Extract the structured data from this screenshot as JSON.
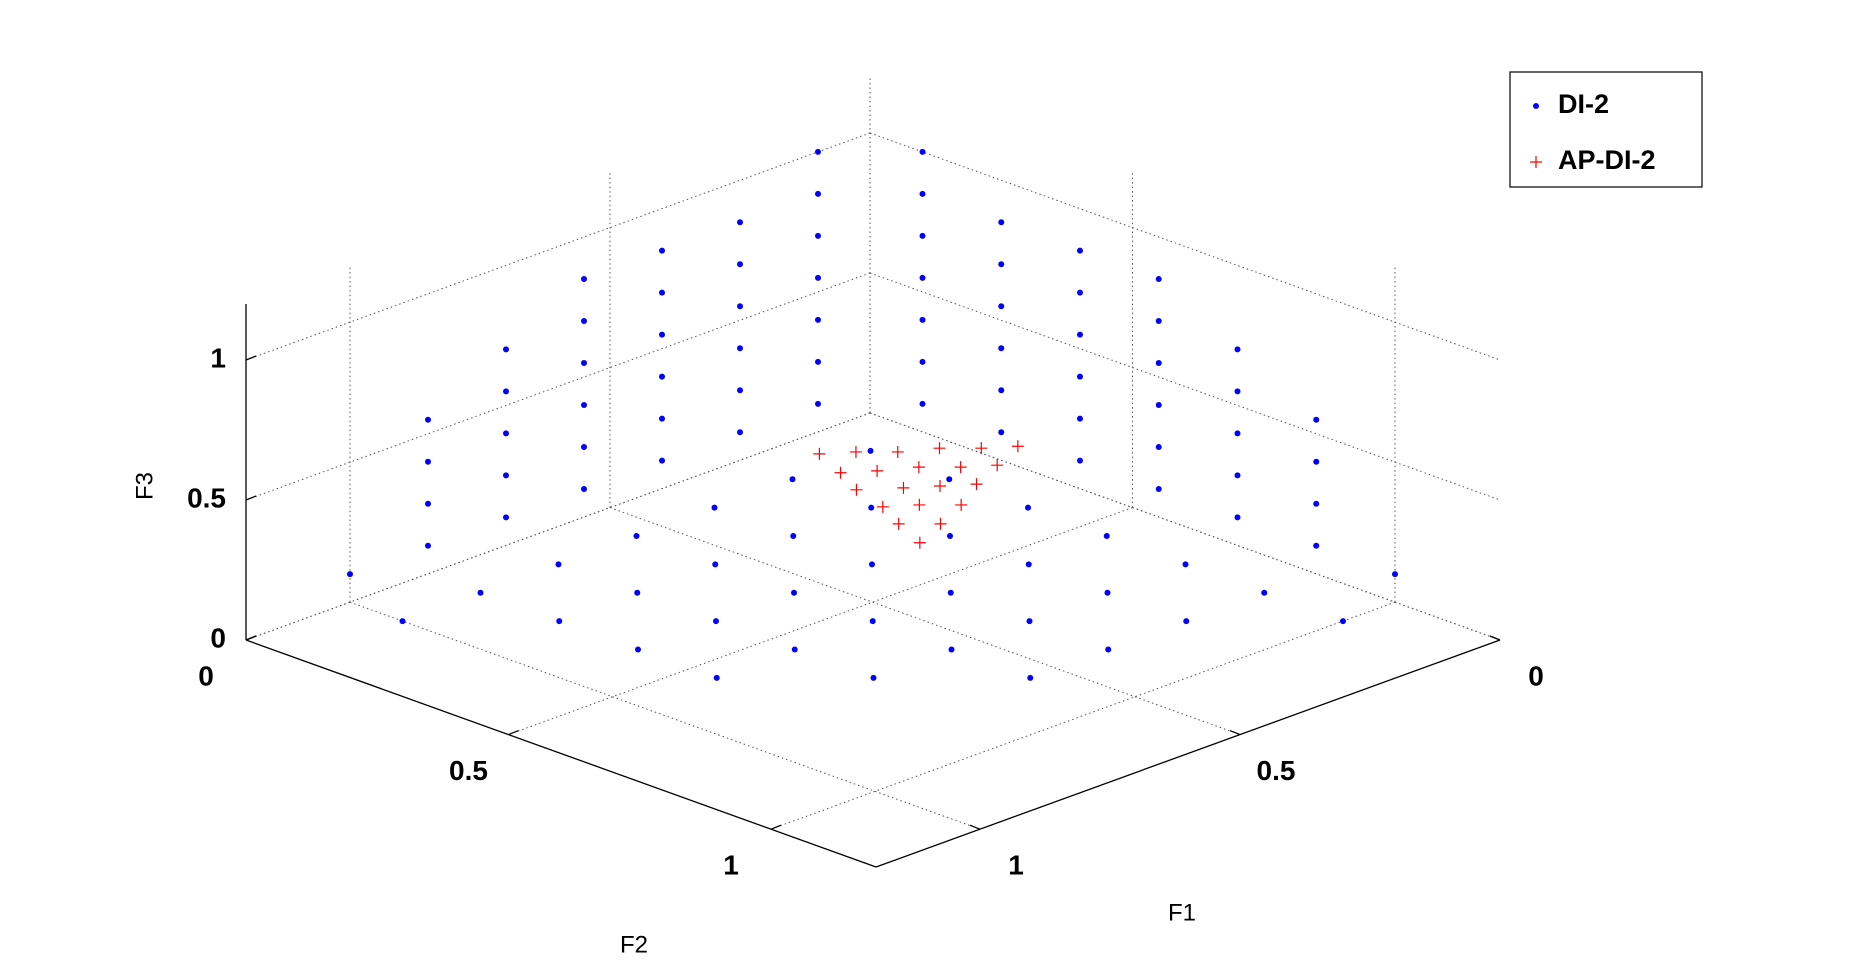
{
  "chart_data": {
    "type": "scatter3d",
    "xlabel": "F1",
    "ylabel": "F2",
    "zlabel": "F3",
    "xlim": [
      0,
      1.2
    ],
    "ylim": [
      0,
      1.2
    ],
    "zlim": [
      0,
      1.2
    ],
    "xticks": [
      0,
      0.5,
      1
    ],
    "yticks": [
      0,
      0.5,
      1
    ],
    "zticks": [
      0,
      0.5,
      1
    ],
    "grid": true,
    "legend_loc": "upper right",
    "series": [
      {
        "name": "DI-2",
        "color": "#0000ff",
        "marker": "dot",
        "x": [
          0.1,
          0.1,
          0.1,
          0.1,
          0.1,
          0.1,
          0.1,
          0.25,
          0.25,
          0.25,
          0.25,
          0.25,
          0.25,
          0.4,
          0.4,
          0.4,
          0.4,
          0.4,
          0.4,
          0.55,
          0.55,
          0.55,
          0.55,
          0.55,
          0.55,
          0.7,
          0.7,
          0.7,
          0.7,
          0.7,
          0.85,
          0.85,
          0.85,
          0.85,
          1.0,
          0.1,
          0.1,
          0.1,
          0.1,
          0.1,
          0.1,
          0.1,
          0.25,
          0.25,
          0.25,
          0.25,
          0.25,
          0.25,
          0.4,
          0.4,
          0.4,
          0.4,
          0.4,
          0.4,
          0.55,
          0.55,
          0.55,
          0.55,
          0.55,
          0.55,
          0.7,
          0.7,
          0.7,
          0.7,
          0.7,
          0.85,
          0.85,
          0.85,
          0.85,
          1.0,
          0,
          0,
          0,
          0,
          0,
          0,
          0,
          0,
          0,
          0,
          0,
          0,
          0,
          0,
          0,
          0,
          0,
          0,
          0,
          0,
          0,
          0,
          0,
          0,
          0,
          0,
          0,
          0,
          0,
          0,
          0,
          0,
          0,
          0,
          0
        ],
        "y": [
          0.1,
          0.25,
          0.4,
          0.55,
          0.7,
          0.85,
          1.0,
          0.1,
          0.25,
          0.4,
          0.55,
          0.7,
          0.85,
          0.1,
          0.25,
          0.4,
          0.55,
          0.7,
          0.85,
          0.1,
          0.25,
          0.4,
          0.55,
          0.7,
          0.85,
          0.1,
          0.25,
          0.4,
          0.55,
          0.7,
          0.1,
          0.25,
          0.4,
          0.55,
          0.1,
          0,
          0,
          0,
          0,
          0,
          0,
          0,
          0,
          0,
          0,
          0,
          0,
          0,
          0,
          0,
          0,
          0,
          0,
          0,
          0,
          0,
          0,
          0,
          0,
          0,
          0,
          0,
          0,
          0,
          0,
          0,
          0,
          0,
          0,
          0,
          0.1,
          0.1,
          0.1,
          0.1,
          0.1,
          0.1,
          0.1,
          0.25,
          0.25,
          0.25,
          0.25,
          0.25,
          0.25,
          0.4,
          0.4,
          0.4,
          0.4,
          0.4,
          0.4,
          0.55,
          0.55,
          0.55,
          0.55,
          0.55,
          0.55,
          0.7,
          0.7,
          0.7,
          0.7,
          0.7,
          0.85,
          0.85,
          0.85,
          0.85,
          1.0
        ],
        "z": [
          0,
          0,
          0,
          0,
          0,
          0,
          0,
          0,
          0,
          0,
          0,
          0,
          0,
          0,
          0,
          0,
          0,
          0,
          0,
          0,
          0,
          0,
          0,
          0,
          0,
          0,
          0,
          0,
          0,
          0,
          0,
          0,
          0,
          0,
          0,
          0.1,
          0.25,
          0.4,
          0.55,
          0.7,
          0.85,
          1.0,
          0.1,
          0.25,
          0.4,
          0.55,
          0.7,
          0.85,
          0.1,
          0.25,
          0.4,
          0.55,
          0.7,
          0.85,
          0.1,
          0.25,
          0.4,
          0.55,
          0.7,
          0.85,
          0.1,
          0.25,
          0.4,
          0.55,
          0.7,
          0.1,
          0.25,
          0.4,
          0.55,
          0.1,
          0.1,
          0.25,
          0.4,
          0.55,
          0.7,
          0.85,
          1.0,
          0.1,
          0.25,
          0.4,
          0.55,
          0.7,
          0.85,
          0.1,
          0.25,
          0.4,
          0.55,
          0.7,
          0.85,
          0.1,
          0.25,
          0.4,
          0.55,
          0.7,
          0.85,
          0.1,
          0.25,
          0.4,
          0.55,
          0.7,
          0.1,
          0.25,
          0.4,
          0.55,
          0.1
        ]
      },
      {
        "name": "AP-DI-2",
        "color": "#ff0000",
        "marker": "plus",
        "x": [
          0.38,
          0.34,
          0.3,
          0.25,
          0.21,
          0.17,
          0.41,
          0.37,
          0.32,
          0.28,
          0.24,
          0.44,
          0.39,
          0.35,
          0.31,
          0.46,
          0.42,
          0.38,
          0.49,
          0.45,
          0.52
        ],
        "y": [
          0.28,
          0.31,
          0.35,
          0.38,
          0.42,
          0.45,
          0.35,
          0.38,
          0.41,
          0.45,
          0.48,
          0.41,
          0.45,
          0.48,
          0.51,
          0.48,
          0.51,
          0.55,
          0.54,
          0.58,
          0.61
        ],
        "z": [
          0.3,
          0.3,
          0.3,
          0.3,
          0.3,
          0.3,
          0.3,
          0.3,
          0.3,
          0.3,
          0.3,
          0.3,
          0.3,
          0.3,
          0.3,
          0.3,
          0.3,
          0.3,
          0.3,
          0.3,
          0.3
        ]
      }
    ]
  }
}
